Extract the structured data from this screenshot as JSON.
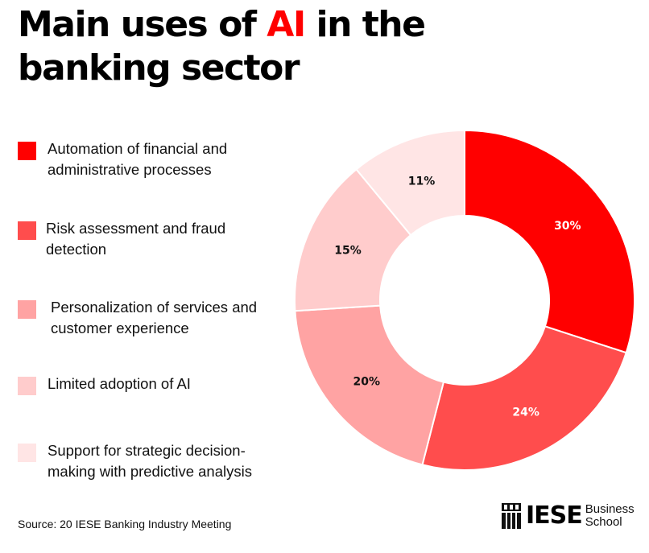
{
  "title": {
    "prefix": "Main uses of ",
    "highlight": "AI",
    "suffix": " in the banking sector",
    "highlight_color": "#ff0000"
  },
  "chart_data": {
    "type": "pie",
    "variant": "donut",
    "title": "",
    "legend_position": "left",
    "slices": [
      {
        "label": "Automation of financial and administrative processes",
        "value": 30,
        "display": "30%",
        "color": "#ff0000",
        "label_color": "#ffffff"
      },
      {
        "label": "Risk assessment and fraud detection",
        "value": 24,
        "display": "24%",
        "color": "#ff4d4d",
        "label_color": "#ffffff"
      },
      {
        "label": "Personalization of services and customer experience",
        "value": 20,
        "display": "20%",
        "color": "#ffa3a3",
        "label_color": "#111111"
      },
      {
        "label": "Limited adoption of AI",
        "value": 15,
        "display": "15%",
        "color": "#ffcccc",
        "label_color": "#111111"
      },
      {
        "label": "Support for strategic decision-making with predictive analysis",
        "value": 11,
        "display": "11%",
        "color": "#ffe5e5",
        "label_color": "#111111"
      }
    ]
  },
  "source": "Source:  20 IESE Banking Industry Meeting",
  "logo": {
    "word": "IESE",
    "line1": "Business",
    "line2": "School",
    "icon": "iese-shield-icon"
  }
}
